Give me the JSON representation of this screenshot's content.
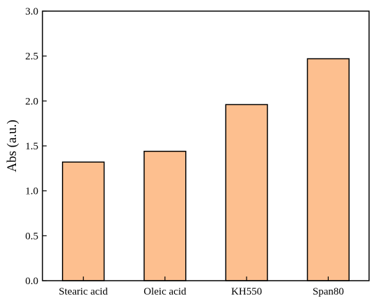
{
  "chart_data": {
    "type": "bar",
    "title": "",
    "xlabel": "",
    "ylabel": "Abs (a.u.)",
    "categories": [
      "Stearic acid",
      "Oleic acid",
      "KH550",
      "Span80"
    ],
    "values": [
      1.32,
      1.44,
      1.96,
      2.47
    ],
    "ylim": [
      0,
      3.0
    ],
    "yticks": [
      "0.0",
      "0.5",
      "1.0",
      "1.5",
      "2.0",
      "2.5",
      "3.0"
    ],
    "grid": false,
    "legend": "none",
    "bar_color": "#FDBF8F",
    "bar_edge_color": "#000000"
  }
}
